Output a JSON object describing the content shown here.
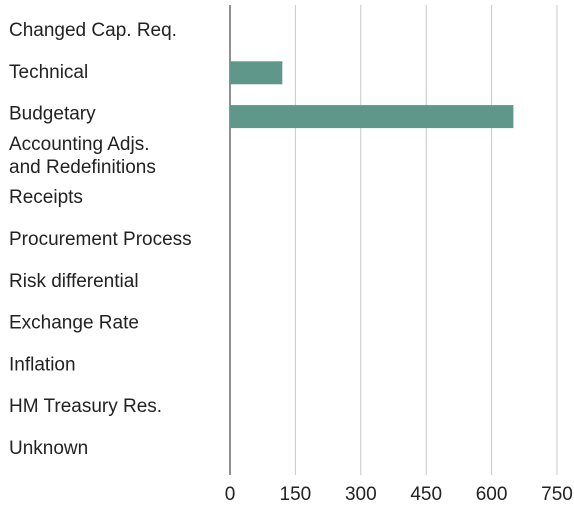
{
  "chart_data": {
    "type": "bar",
    "orientation": "horizontal",
    "categories": [
      "Changed Cap. Req.",
      "Technical",
      "Budgetary",
      "Accounting Adjs.\nand Redefinitions",
      "Receipts",
      "Procurement Process",
      "Risk differential",
      "Exchange Rate",
      "Inflation",
      "HM Treasury Res.",
      "Unknown"
    ],
    "values": [
      0,
      120,
      650,
      0,
      0,
      0,
      0,
      0,
      0,
      0,
      0
    ],
    "color": "#5f978a",
    "xlim": [
      0,
      750
    ],
    "xticks": [
      0,
      150,
      300,
      450,
      600,
      750
    ],
    "grid": true
  }
}
